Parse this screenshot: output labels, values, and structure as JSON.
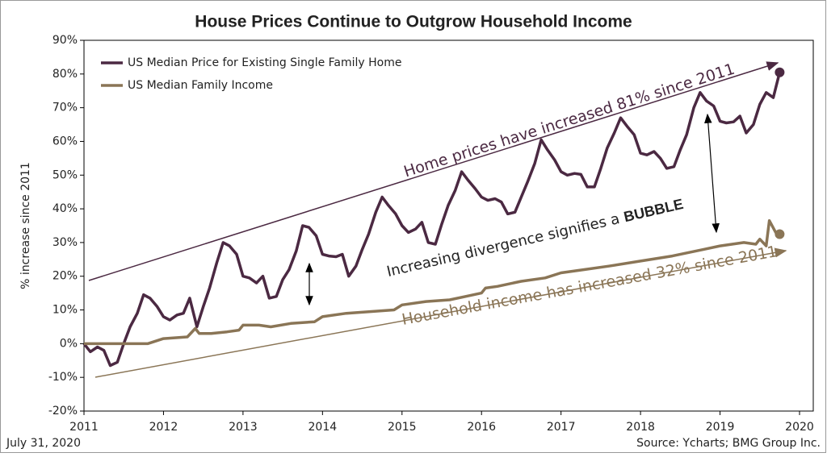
{
  "chart_data": {
    "type": "line",
    "title": "House Prices Continue to Outgrow Household Income",
    "y_label": "% increase since 2011",
    "xlim": [
      2011,
      2020
    ],
    "xticks": [
      2011,
      2012,
      2013,
      2014,
      2015,
      2016,
      2017,
      2018,
      2019,
      2020
    ],
    "ylim": [
      -20,
      90
    ],
    "yticks": [
      {
        "value": -20,
        "label": "-20%"
      },
      {
        "value": -10,
        "label": "-10%"
      },
      {
        "value": 0,
        "label": "0%"
      },
      {
        "value": 10,
        "label": "10%"
      },
      {
        "value": 20,
        "label": "20%"
      },
      {
        "value": 30,
        "label": "30%"
      },
      {
        "value": 40,
        "label": "40%"
      },
      {
        "value": 50,
        "label": "50%"
      },
      {
        "value": 60,
        "label": "60%"
      },
      {
        "value": 70,
        "label": "70%"
      },
      {
        "value": 80,
        "label": "80%"
      },
      {
        "value": 90,
        "label": "90%"
      }
    ],
    "grid": false,
    "legend": "top-left",
    "series": [
      {
        "name": "US Median Price for Existing Single Family Home",
        "color": "#4b2942",
        "x": [
          2011.0,
          2011.08,
          2011.17,
          2011.25,
          2011.33,
          2011.42,
          2011.5,
          2011.58,
          2011.67,
          2011.75,
          2011.83,
          2011.92,
          2012.0,
          2012.08,
          2012.17,
          2012.25,
          2012.33,
          2012.42,
          2012.5,
          2012.58,
          2012.67,
          2012.75,
          2012.83,
          2012.92,
          2013.0,
          2013.08,
          2013.17,
          2013.25,
          2013.33,
          2013.42,
          2013.5,
          2013.58,
          2013.67,
          2013.75,
          2013.83,
          2013.92,
          2014.0,
          2014.08,
          2014.17,
          2014.25,
          2014.33,
          2014.42,
          2014.5,
          2014.58,
          2014.67,
          2014.75,
          2014.83,
          2014.92,
          2015.0,
          2015.08,
          2015.17,
          2015.25,
          2015.33,
          2015.42,
          2015.5,
          2015.58,
          2015.67,
          2015.75,
          2015.83,
          2015.92,
          2016.0,
          2016.08,
          2016.17,
          2016.25,
          2016.33,
          2016.42,
          2016.5,
          2016.58,
          2016.67,
          2016.75,
          2016.83,
          2016.92,
          2017.0,
          2017.08,
          2017.17,
          2017.25,
          2017.33,
          2017.42,
          2017.5,
          2017.58,
          2017.67,
          2017.75,
          2017.83,
          2017.92,
          2018.0,
          2018.08,
          2018.17,
          2018.25,
          2018.33,
          2018.42,
          2018.5,
          2018.58,
          2018.67,
          2018.75,
          2018.83,
          2018.92,
          2019.0,
          2019.08,
          2019.17,
          2019.25,
          2019.33,
          2019.42,
          2019.5,
          2019.58,
          2019.67,
          2019.75
        ],
        "values": [
          0,
          -2.4,
          -1,
          -2,
          -6.5,
          -5.5,
          0,
          5,
          9,
          14.5,
          13.5,
          11,
          8,
          7,
          8.5,
          9,
          13.5,
          5,
          11,
          16.5,
          24,
          30,
          29,
          26.5,
          20,
          19.5,
          18,
          20,
          13.5,
          14,
          19,
          22,
          27.5,
          35,
          34.5,
          32,
          26.5,
          26,
          25.8,
          26.5,
          20,
          23,
          28,
          32.5,
          39,
          43.5,
          41,
          38.5,
          35,
          33,
          34,
          36,
          30,
          29.5,
          35.5,
          41,
          45.5,
          51,
          48.5,
          46,
          43.5,
          42.5,
          43,
          42,
          38.5,
          39,
          43.5,
          48,
          53.5,
          60.5,
          57.5,
          54.5,
          51,
          50,
          50.5,
          50.2,
          46.5,
          46.5,
          52,
          58,
          62.5,
          67,
          64.5,
          62,
          56.5,
          56,
          57,
          55,
          52,
          52.5,
          57.5,
          62,
          70,
          74.5,
          72,
          70.5,
          66,
          65.5,
          65.8,
          67.5,
          62.5,
          65,
          71,
          74.5,
          73,
          80.5
        ]
      },
      {
        "name": "US Median Family Income",
        "color": "#8a7556",
        "x": [
          2011.0,
          2011.8,
          2012.0,
          2012.3,
          2012.4,
          2012.45,
          2012.6,
          2012.8,
          2012.95,
          2013.0,
          2013.2,
          2013.35,
          2013.6,
          2013.9,
          2014.0,
          2014.3,
          2014.6,
          2014.9,
          2015.0,
          2015.3,
          2015.6,
          2015.8,
          2016.0,
          2016.05,
          2016.2,
          2016.5,
          2016.8,
          2017.0,
          2017.3,
          2017.6,
          2018.0,
          2018.4,
          2018.8,
          2019.0,
          2019.3,
          2019.45,
          2019.5,
          2019.58,
          2019.62,
          2019.7,
          2019.75
        ],
        "values": [
          0,
          0,
          1.5,
          2,
          4.5,
          3,
          3,
          3.5,
          4,
          5.5,
          5.5,
          5,
          6,
          6.5,
          8,
          9,
          9.5,
          10,
          11.5,
          12.5,
          13,
          14,
          15,
          16.5,
          17,
          18.5,
          19.5,
          21,
          22,
          23,
          24.5,
          26,
          28,
          29,
          30,
          29.5,
          31,
          29,
          36.5,
          33,
          32.5
        ]
      }
    ],
    "annotations": {
      "home": "Home prices have increased 81% since 2011",
      "income": "Household income has increased 32% since 2011",
      "divergence": "Increasing divergence signifies a",
      "bubble": "BUBBLE"
    },
    "date": "July 31, 2020",
    "source": "Source: Ycharts; BMG Group Inc."
  }
}
